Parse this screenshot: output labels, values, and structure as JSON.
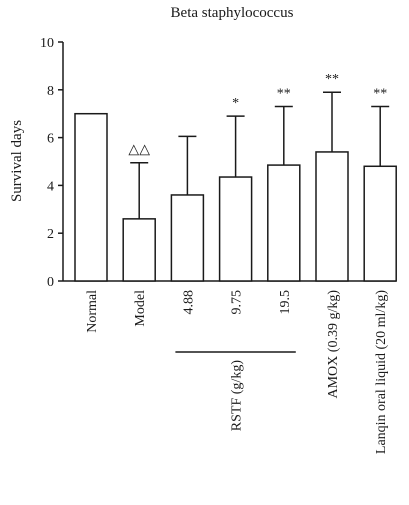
{
  "chart_data": {
    "type": "bar",
    "title": "Beta staphylococcus",
    "xlabel": "",
    "ylabel": "Survival days",
    "ylim": [
      0,
      10
    ],
    "yticks": [
      "0",
      "2",
      "4",
      "6",
      "8",
      "10"
    ],
    "grid": false,
    "categories": [
      "Normal",
      "Model",
      "4.88",
      "9.75",
      "19.5",
      "AMOX (0.39 g/kg)",
      "Lanqin oral liquid (20 ml/kg)"
    ],
    "values": [
      7.0,
      2.6,
      3.6,
      4.35,
      4.85,
      5.4,
      4.8
    ],
    "error_upper": [
      0,
      2.35,
      2.45,
      2.55,
      2.45,
      2.5,
      2.5
    ],
    "annotations": [
      "",
      "△△",
      "",
      "*",
      "**",
      "**",
      "**"
    ],
    "group_label": "RSTF (g/kg)",
    "group_members": [
      2,
      3,
      4
    ],
    "bar_fill": "#ffffff",
    "stroke_color": "#1a1a1a"
  }
}
